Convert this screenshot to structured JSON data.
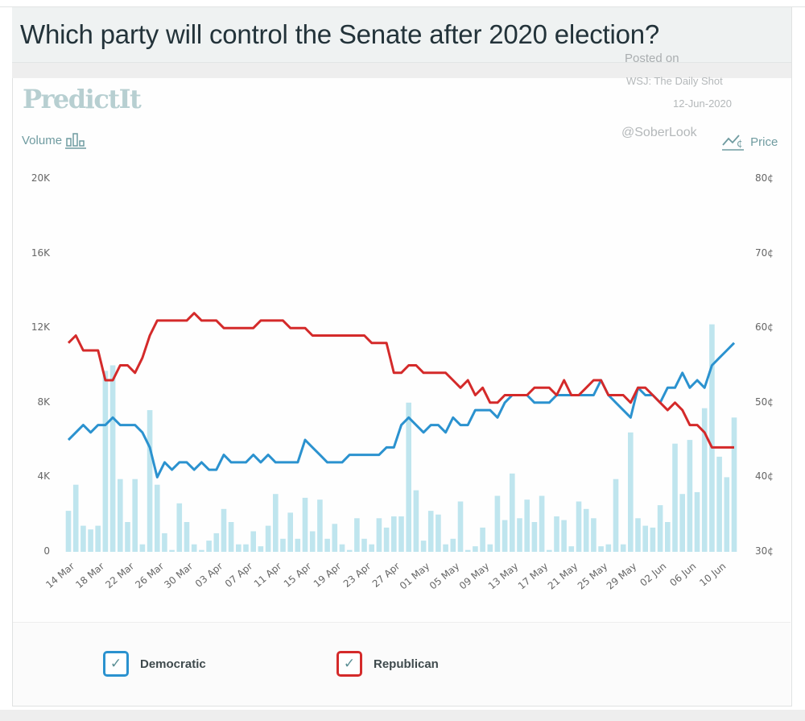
{
  "title": "Which party will control the Senate after 2020 election?",
  "brand": "PredictIt",
  "posted": {
    "line1": "Posted on",
    "line2": "WSJ: The Daily Shot",
    "line3": "12-Jun-2020",
    "handle": "@SoberLook"
  },
  "left_axis_title": "Volume",
  "right_axis_title": "Price",
  "colors": {
    "democratic": "#2b92cf",
    "republican": "#d42a2a",
    "volume": "#bfe5ee",
    "axis_text": "#666666"
  },
  "legend": [
    {
      "label": "Democratic",
      "checked": true,
      "color": "#2b92cf"
    },
    {
      "label": "Republican",
      "checked": true,
      "color": "#d42a2a"
    }
  ],
  "chart_data": {
    "type": "line",
    "title": "Which party will control the Senate after 2020 election?",
    "xlabel": "",
    "ylabel_left": "Volume",
    "ylabel_right": "Price",
    "y_left_range": [
      0,
      20000
    ],
    "y_left_ticks": [
      "0",
      "4K",
      "8K",
      "12K",
      "16K",
      "20K"
    ],
    "y_left_tick_values": [
      0,
      4000,
      8000,
      12000,
      16000,
      20000
    ],
    "y_right_range": [
      30,
      80
    ],
    "y_right_ticks": [
      "30¢",
      "40¢",
      "50¢",
      "60¢",
      "70¢",
      "80¢"
    ],
    "y_right_tick_values": [
      30,
      40,
      50,
      60,
      70,
      80
    ],
    "x_ticks": [
      "14 Mar",
      "18 Mar",
      "22 Mar",
      "26 Mar",
      "30 Mar",
      "03 Apr",
      "07 Apr",
      "11 Apr",
      "15 Apr",
      "19 Apr",
      "23 Apr",
      "27 Apr",
      "01 May",
      "05 May",
      "09 May",
      "13 May",
      "17 May",
      "21 May",
      "25 May",
      "29 May",
      "02 Jun",
      "06 Jun",
      "10 Jun"
    ],
    "x_start": "14 Mar",
    "x_end": "11 Jun",
    "grid": false,
    "legend_position": "bottom",
    "series": [
      {
        "name": "Democratic",
        "axis": "right",
        "unit": "cents",
        "values": [
          45,
          46,
          47,
          46,
          47,
          47,
          48,
          47,
          47,
          47,
          46,
          44,
          40,
          42,
          41,
          42,
          42,
          41,
          42,
          41,
          41,
          43,
          42,
          42,
          42,
          43,
          42,
          43,
          42,
          42,
          42,
          42,
          45,
          44,
          43,
          42,
          42,
          42,
          43,
          43,
          43,
          43,
          43,
          44,
          44,
          47,
          48,
          47,
          46,
          47,
          47,
          46,
          48,
          47,
          47,
          49,
          49,
          49,
          48,
          50,
          51,
          51,
          51,
          50,
          50,
          50,
          51,
          51,
          51,
          51,
          51,
          51,
          53,
          51,
          50,
          49,
          48,
          52,
          51,
          51,
          50,
          52,
          52,
          54,
          52,
          53,
          52,
          55,
          56,
          57,
          58
        ]
      },
      {
        "name": "Republican",
        "axis": "right",
        "unit": "cents",
        "values": [
          58,
          59,
          57,
          57,
          57,
          53,
          53,
          55,
          55,
          54,
          56,
          59,
          61,
          61,
          61,
          61,
          61,
          62,
          61,
          61,
          61,
          60,
          60,
          60,
          60,
          60,
          61,
          61,
          61,
          61,
          60,
          60,
          60,
          59,
          59,
          59,
          59,
          59,
          59,
          59,
          59,
          58,
          58,
          58,
          54,
          54,
          55,
          55,
          54,
          54,
          54,
          54,
          53,
          52,
          53,
          51,
          52,
          50,
          50,
          51,
          51,
          51,
          51,
          52,
          52,
          52,
          51,
          53,
          51,
          51,
          52,
          53,
          53,
          51,
          51,
          51,
          50,
          52,
          52,
          51,
          50,
          49,
          50,
          49,
          47,
          47,
          46,
          44,
          44,
          44,
          44
        ]
      },
      {
        "name": "Volume",
        "type": "bar",
        "axis": "left",
        "unit": "contracts",
        "values": [
          2200,
          3600,
          1400,
          1200,
          1400,
          9700,
          10000,
          3900,
          1600,
          3900,
          400,
          7600,
          3600,
          1000,
          100,
          2600,
          1600,
          400,
          100,
          600,
          1000,
          2300,
          1600,
          400,
          400,
          1100,
          300,
          1400,
          3100,
          700,
          2100,
          700,
          2900,
          1100,
          2800,
          700,
          1500,
          400,
          100,
          1800,
          700,
          400,
          1800,
          1300,
          1900,
          1900,
          8000,
          3300,
          600,
          2200,
          2000,
          400,
          700,
          2700,
          100,
          300,
          1300,
          400,
          3000,
          1700,
          4200,
          1800,
          2800,
          1600,
          3000,
          100,
          1900,
          1700,
          300,
          2700,
          2300,
          1800,
          300,
          400,
          3900,
          400,
          6400,
          1800,
          1400,
          1300,
          2500,
          1600,
          5800,
          3100,
          6000,
          3200,
          7700,
          12200,
          5100,
          4000,
          7200
        ]
      }
    ]
  }
}
